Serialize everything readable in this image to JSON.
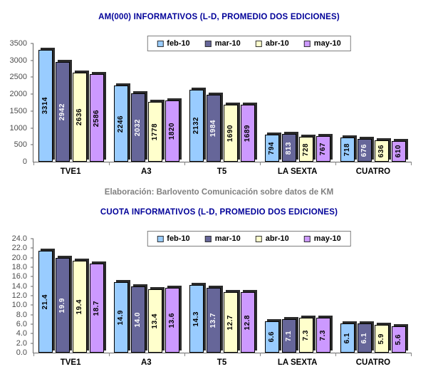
{
  "colors": {
    "title": "#000099",
    "source_text": "#808080",
    "axis": "#666666",
    "bar_border": "#000000",
    "series": [
      {
        "name": "feb-10",
        "fill": "#99CCFF",
        "label_color": "#000000"
      },
      {
        "name": "mar-10",
        "fill": "#666699",
        "label_color": "#FFFFFF"
      },
      {
        "name": "abr-10",
        "fill": "#FFFFCC",
        "label_color": "#000000"
      },
      {
        "name": "may-10",
        "fill": "#CC99FF",
        "label_color": "#000000"
      }
    ]
  },
  "legend": {
    "items": [
      "feb-10",
      "mar-10",
      "abr-10",
      "may-10"
    ]
  },
  "source_note": "Elaboración: Barlovento Comunicación sobre datos de KM",
  "chart_data": [
    {
      "type": "bar",
      "title": "AM(000) INFORMATIVOS (L-D, PROMEDIO DOS EDICIONES)",
      "categories": [
        "TVE1",
        "A3",
        "T5",
        "LA SEXTA",
        "CUATRO"
      ],
      "series": [
        {
          "name": "feb-10",
          "values": [
            3314,
            2246,
            2132,
            794,
            718
          ]
        },
        {
          "name": "mar-10",
          "values": [
            2942,
            2032,
            1984,
            813,
            676
          ]
        },
        {
          "name": "abr-10",
          "values": [
            2636,
            1778,
            1690,
            728,
            636
          ]
        },
        {
          "name": "may-10",
          "values": [
            2586,
            1820,
            1689,
            767,
            610
          ]
        }
      ],
      "ylim": [
        0,
        3500
      ],
      "ytick_step": 500,
      "ytick_decimals": 0,
      "value_decimals": 0,
      "legend_position": "top",
      "grid": false
    },
    {
      "type": "bar",
      "title": "CUOTA INFORMATIVOS (L-D, PROMEDIO DOS EDICIONES)",
      "categories": [
        "TVE1",
        "A3",
        "T5",
        "LA SEXTA",
        "CUATRO"
      ],
      "series": [
        {
          "name": "feb-10",
          "values": [
            21.4,
            14.9,
            14.3,
            6.6,
            6.1
          ]
        },
        {
          "name": "mar-10",
          "values": [
            19.9,
            14.0,
            13.7,
            7.1,
            6.1
          ]
        },
        {
          "name": "abr-10",
          "values": [
            19.4,
            13.4,
            12.7,
            7.3,
            5.9
          ]
        },
        {
          "name": "may-10",
          "values": [
            18.7,
            13.6,
            12.8,
            7.3,
            5.6
          ]
        }
      ],
      "ylim": [
        0,
        24
      ],
      "ytick_step": 2,
      "ytick_decimals": 1,
      "value_decimals": 1,
      "legend_position": "top",
      "grid": false
    }
  ]
}
